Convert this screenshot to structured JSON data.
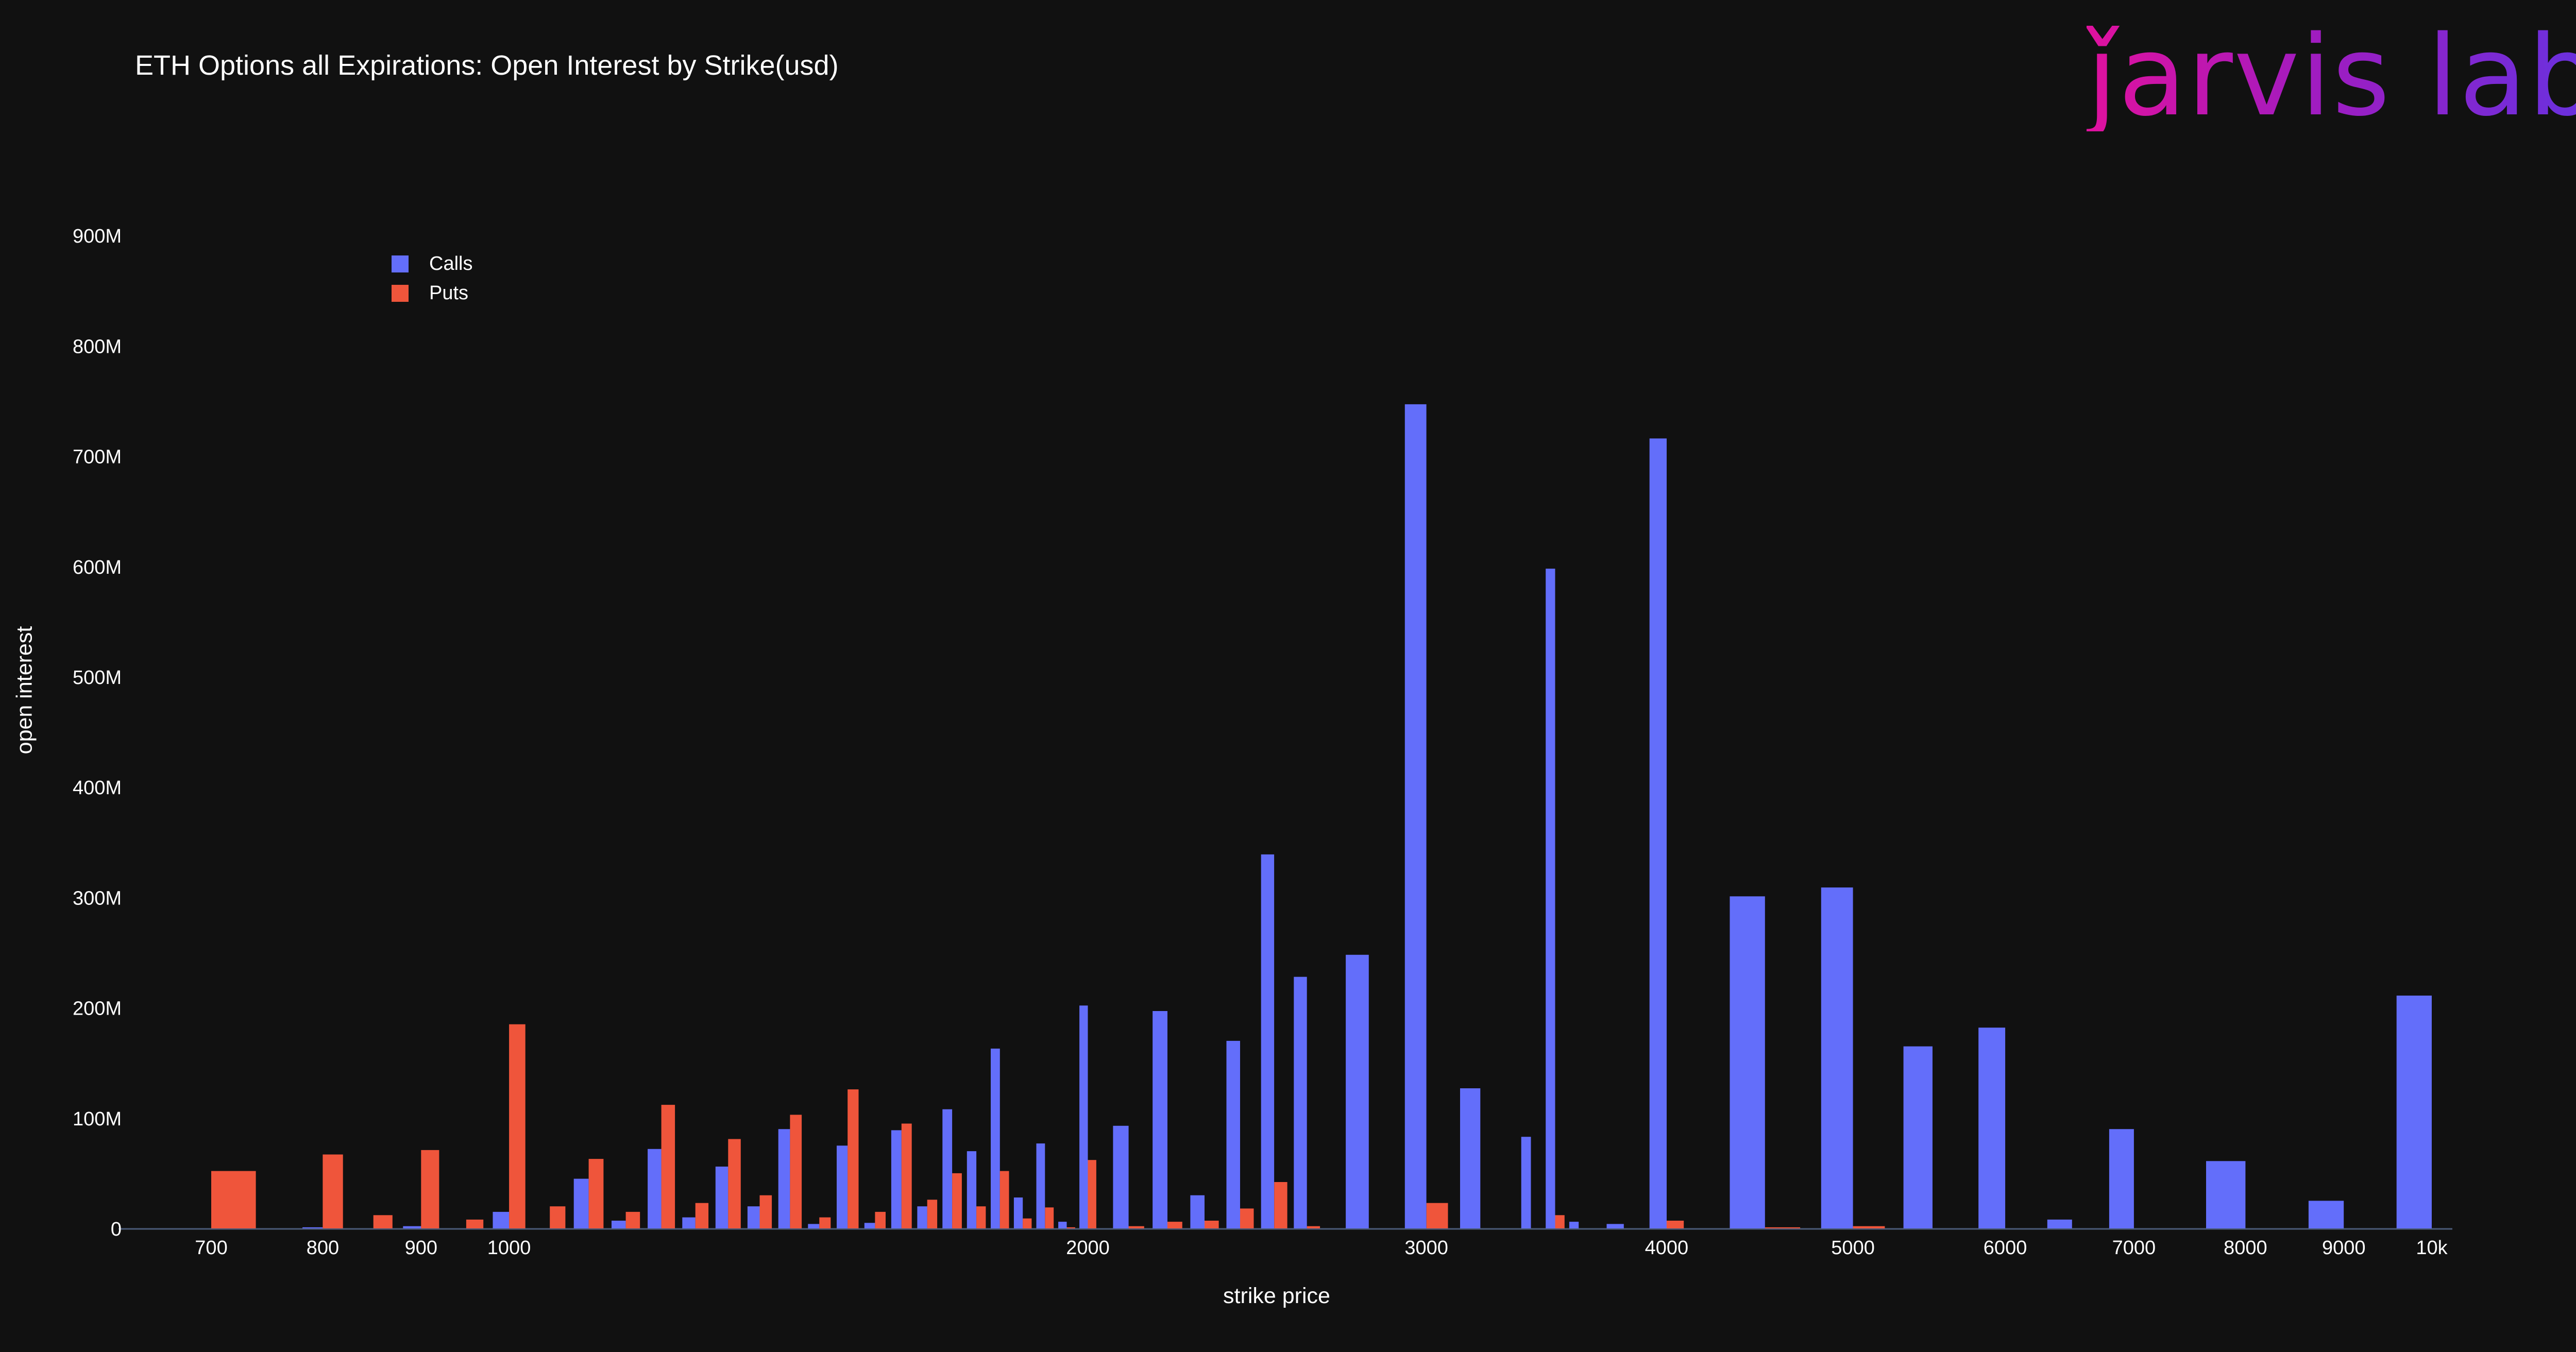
{
  "logo": "ǰarvis labs",
  "legend": [
    {
      "label": "Calls",
      "color": "#636efa"
    },
    {
      "label": "Puts",
      "color": "#ef553b"
    }
  ],
  "chart_data": {
    "type": "bar",
    "title": "ETH Options all Expirations: Open Interest by Strike(usd)",
    "xlabel": "strike price",
    "ylabel": "open interest",
    "x_scale": "log",
    "x_ticks": [
      {
        "v": 700,
        "label": "700"
      },
      {
        "v": 800,
        "label": "800"
      },
      {
        "v": 900,
        "label": "900"
      },
      {
        "v": 1000,
        "label": "1000"
      },
      {
        "v": 2000,
        "label": "2000"
      },
      {
        "v": 3000,
        "label": "3000"
      },
      {
        "v": 4000,
        "label": "4000"
      },
      {
        "v": 5000,
        "label": "5000"
      },
      {
        "v": 6000,
        "label": "6000"
      },
      {
        "v": 7000,
        "label": "7000"
      },
      {
        "v": 8000,
        "label": "8000"
      },
      {
        "v": 9000,
        "label": "9000"
      },
      {
        "v": 10000,
        "label": "10k"
      }
    ],
    "y_ticks": [
      {
        "v": 0,
        "label": "0"
      },
      {
        "v": 100,
        "label": "100M"
      },
      {
        "v": 200,
        "label": "200M"
      },
      {
        "v": 300,
        "label": "300M"
      },
      {
        "v": 400,
        "label": "400M"
      },
      {
        "v": 500,
        "label": "500M"
      },
      {
        "v": 600,
        "label": "600M"
      },
      {
        "v": 700,
        "label": "700M"
      },
      {
        "v": 800,
        "label": "800M"
      },
      {
        "v": 900,
        "label": "900M"
      }
    ],
    "y_unit": "M",
    "ylim": [
      0,
      900
    ],
    "grid": false,
    "legend_position": "top-left",
    "series": [
      {
        "name": "Calls",
        "color": "#636efa",
        "values": [
          [
            700,
            0
          ],
          [
            800,
            1
          ],
          [
            850,
            0
          ],
          [
            900,
            2
          ],
          [
            950,
            0
          ],
          [
            1000,
            15
          ],
          [
            1050,
            0
          ],
          [
            1100,
            45
          ],
          [
            1150,
            7
          ],
          [
            1200,
            72
          ],
          [
            1250,
            10
          ],
          [
            1300,
            56
          ],
          [
            1350,
            20
          ],
          [
            1400,
            90
          ],
          [
            1450,
            4
          ],
          [
            1500,
            75
          ],
          [
            1550,
            5
          ],
          [
            1600,
            89
          ],
          [
            1650,
            20
          ],
          [
            1700,
            108
          ],
          [
            1750,
            70
          ],
          [
            1800,
            163
          ],
          [
            1850,
            28
          ],
          [
            1900,
            77
          ],
          [
            1950,
            6
          ],
          [
            2000,
            202
          ],
          [
            2100,
            93
          ],
          [
            2200,
            197
          ],
          [
            2300,
            30
          ],
          [
            2400,
            170
          ],
          [
            2500,
            339
          ],
          [
            2600,
            228
          ],
          [
            2800,
            248
          ],
          [
            3000,
            747
          ],
          [
            3200,
            127
          ],
          [
            3400,
            83
          ],
          [
            3500,
            598
          ],
          [
            3600,
            6
          ],
          [
            3800,
            4
          ],
          [
            4000,
            716
          ],
          [
            4500,
            301
          ],
          [
            5000,
            309
          ],
          [
            5500,
            165
          ],
          [
            6000,
            182
          ],
          [
            6500,
            8
          ],
          [
            7000,
            90
          ],
          [
            8000,
            61
          ],
          [
            9000,
            25
          ],
          [
            10000,
            211
          ]
        ]
      },
      {
        "name": "Puts",
        "color": "#ef553b",
        "values": [
          [
            700,
            52
          ],
          [
            800,
            67
          ],
          [
            850,
            12
          ],
          [
            900,
            71
          ],
          [
            950,
            8
          ],
          [
            1000,
            185
          ],
          [
            1050,
            20
          ],
          [
            1100,
            63
          ],
          [
            1150,
            15
          ],
          [
            1200,
            112
          ],
          [
            1250,
            23
          ],
          [
            1300,
            81
          ],
          [
            1350,
            30
          ],
          [
            1400,
            103
          ],
          [
            1450,
            10
          ],
          [
            1500,
            126
          ],
          [
            1550,
            15
          ],
          [
            1600,
            95
          ],
          [
            1650,
            26
          ],
          [
            1700,
            50
          ],
          [
            1750,
            20
          ],
          [
            1800,
            52
          ],
          [
            1850,
            9
          ],
          [
            1900,
            19
          ],
          [
            1950,
            1
          ],
          [
            2000,
            62
          ],
          [
            2100,
            2
          ],
          [
            2200,
            6
          ],
          [
            2300,
            7
          ],
          [
            2400,
            18
          ],
          [
            2500,
            42
          ],
          [
            2600,
            2
          ],
          [
            2800,
            0
          ],
          [
            3000,
            23
          ],
          [
            3200,
            0
          ],
          [
            3400,
            0
          ],
          [
            3500,
            12
          ],
          [
            3600,
            0
          ],
          [
            3800,
            0
          ],
          [
            4000,
            7
          ],
          [
            4500,
            1
          ],
          [
            5000,
            2
          ],
          [
            5500,
            0
          ],
          [
            6000,
            0
          ],
          [
            6500,
            0
          ],
          [
            7000,
            0
          ],
          [
            8000,
            0
          ],
          [
            9000,
            0
          ],
          [
            10000,
            0
          ]
        ]
      }
    ]
  }
}
